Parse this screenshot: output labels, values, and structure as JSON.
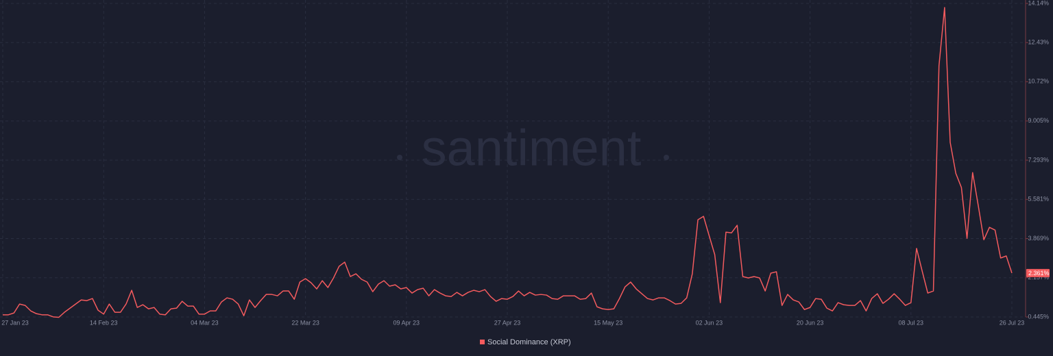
{
  "chart_data": {
    "type": "line",
    "watermark": "santiment",
    "x": [
      "27 Jan 23",
      "28 Jan 23",
      "29 Jan 23",
      "30 Jan 23",
      "31 Jan 23",
      "01 Feb 23",
      "02 Feb 23",
      "03 Feb 23",
      "04 Feb 23",
      "05 Feb 23",
      "06 Feb 23",
      "07 Feb 23",
      "08 Feb 23",
      "09 Feb 23",
      "10 Feb 23",
      "11 Feb 23",
      "12 Feb 23",
      "13 Feb 23",
      "14 Feb 23",
      "15 Feb 23",
      "16 Feb 23",
      "17 Feb 23",
      "18 Feb 23",
      "19 Feb 23",
      "20 Feb 23",
      "21 Feb 23",
      "22 Feb 23",
      "23 Feb 23",
      "24 Feb 23",
      "25 Feb 23",
      "26 Feb 23",
      "27 Feb 23",
      "28 Feb 23",
      "01 Mar 23",
      "02 Mar 23",
      "03 Mar 23",
      "04 Mar 23",
      "05 Mar 23",
      "06 Mar 23",
      "07 Mar 23",
      "08 Mar 23",
      "09 Mar 23",
      "10 Mar 23",
      "11 Mar 23",
      "12 Mar 23",
      "13 Mar 23",
      "14 Mar 23",
      "15 Mar 23",
      "16 Mar 23",
      "17 Mar 23",
      "18 Mar 23",
      "19 Mar 23",
      "20 Mar 23",
      "21 Mar 23",
      "22 Mar 23",
      "23 Mar 23",
      "24 Mar 23",
      "25 Mar 23",
      "26 Mar 23",
      "27 Mar 23",
      "28 Mar 23",
      "29 Mar 23",
      "30 Mar 23",
      "31 Mar 23",
      "01 Apr 23",
      "02 Apr 23",
      "03 Apr 23",
      "04 Apr 23",
      "05 Apr 23",
      "06 Apr 23",
      "07 Apr 23",
      "08 Apr 23",
      "09 Apr 23",
      "10 Apr 23",
      "11 Apr 23",
      "12 Apr 23",
      "13 Apr 23",
      "14 Apr 23",
      "15 Apr 23",
      "16 Apr 23",
      "17 Apr 23",
      "18 Apr 23",
      "19 Apr 23",
      "20 Apr 23",
      "21 Apr 23",
      "22 Apr 23",
      "23 Apr 23",
      "24 Apr 23",
      "25 Apr 23",
      "26 Apr 23",
      "27 Apr 23",
      "28 Apr 23",
      "29 Apr 23",
      "30 Apr 23",
      "01 May 23",
      "02 May 23",
      "03 May 23",
      "04 May 23",
      "05 May 23",
      "06 May 23",
      "07 May 23",
      "08 May 23",
      "09 May 23",
      "10 May 23",
      "11 May 23",
      "12 May 23",
      "13 May 23",
      "14 May 23",
      "15 May 23",
      "16 May 23",
      "17 May 23",
      "18 May 23",
      "19 May 23",
      "20 May 23",
      "21 May 23",
      "22 May 23",
      "23 May 23",
      "24 May 23",
      "25 May 23",
      "26 May 23",
      "27 May 23",
      "28 May 23",
      "29 May 23",
      "30 May 23",
      "31 May 23",
      "01 Jun 23",
      "02 Jun 23",
      "03 Jun 23",
      "04 Jun 23",
      "05 Jun 23",
      "06 Jun 23",
      "07 Jun 23",
      "08 Jun 23",
      "09 Jun 23",
      "10 Jun 23",
      "11 Jun 23",
      "12 Jun 23",
      "13 Jun 23",
      "14 Jun 23",
      "15 Jun 23",
      "16 Jun 23",
      "17 Jun 23",
      "18 Jun 23",
      "19 Jun 23",
      "20 Jun 23",
      "21 Jun 23",
      "22 Jun 23",
      "23 Jun 23",
      "24 Jun 23",
      "25 Jun 23",
      "26 Jun 23",
      "27 Jun 23",
      "28 Jun 23",
      "29 Jun 23",
      "30 Jun 23",
      "01 Jul 23",
      "02 Jul 23",
      "03 Jul 23",
      "04 Jul 23",
      "05 Jul 23",
      "06 Jul 23",
      "07 Jul 23",
      "08 Jul 23",
      "09 Jul 23",
      "10 Jul 23",
      "11 Jul 23",
      "12 Jul 23",
      "13 Jul 23",
      "14 Jul 23",
      "15 Jul 23",
      "16 Jul 23",
      "17 Jul 23",
      "18 Jul 23",
      "19 Jul 23",
      "20 Jul 23",
      "21 Jul 23",
      "22 Jul 23",
      "23 Jul 23",
      "24 Jul 23",
      "25 Jul 23",
      "26 Jul 23"
    ],
    "series": [
      {
        "name": "Social Dominance (XRP)",
        "color": "#f45b5e",
        "current_value_label": "2.361%",
        "values": [
          0.54,
          0.54,
          0.62,
          1.01,
          0.95,
          0.71,
          0.59,
          0.54,
          0.54,
          0.45,
          0.43,
          0.65,
          0.83,
          1.01,
          1.19,
          1.16,
          1.25,
          0.74,
          0.57,
          1.01,
          0.65,
          0.65,
          1.01,
          1.61,
          0.86,
          0.98,
          0.8,
          0.86,
          0.57,
          0.54,
          0.8,
          0.83,
          1.13,
          0.92,
          0.92,
          0.57,
          0.57,
          0.71,
          0.71,
          1.1,
          1.28,
          1.22,
          1.01,
          0.5,
          1.19,
          0.86,
          1.16,
          1.43,
          1.43,
          1.37,
          1.58,
          1.58,
          1.22,
          1.97,
          2.12,
          1.94,
          1.67,
          2.03,
          1.73,
          2.15,
          2.66,
          2.84,
          2.21,
          2.33,
          2.09,
          1.97,
          1.55,
          1.88,
          2.03,
          1.79,
          1.85,
          1.67,
          1.73,
          1.49,
          1.64,
          1.7,
          1.37,
          1.64,
          1.49,
          1.37,
          1.34,
          1.52,
          1.37,
          1.52,
          1.61,
          1.55,
          1.64,
          1.34,
          1.13,
          1.25,
          1.22,
          1.34,
          1.58,
          1.37,
          1.52,
          1.4,
          1.43,
          1.4,
          1.25,
          1.22,
          1.37,
          1.37,
          1.37,
          1.22,
          1.25,
          1.49,
          0.89,
          0.8,
          0.77,
          0.8,
          1.25,
          1.76,
          1.97,
          1.67,
          1.46,
          1.25,
          1.19,
          1.28,
          1.28,
          1.16,
          1.01,
          1.04,
          1.28,
          2.33,
          4.69,
          4.84,
          4.0,
          3.17,
          1.07,
          4.15,
          4.12,
          4.45,
          2.21,
          2.15,
          2.21,
          2.15,
          1.58,
          2.36,
          2.42,
          0.95,
          1.43,
          1.19,
          1.1,
          0.77,
          0.86,
          1.25,
          1.22,
          0.83,
          0.71,
          1.07,
          0.98,
          0.95,
          0.95,
          1.16,
          0.71,
          1.25,
          1.46,
          1.04,
          1.22,
          1.46,
          1.22,
          0.95,
          1.07,
          3.44,
          2.45,
          1.49,
          1.58,
          11.42,
          13.96,
          8.07,
          6.72,
          6.1,
          3.88,
          6.75,
          5.32,
          3.82,
          4.36,
          4.24,
          3.02,
          3.11,
          2.361
        ]
      }
    ],
    "xticks": [
      "27 Jan 23",
      "14 Feb 23",
      "04 Mar 23",
      "22 Mar 23",
      "09 Apr 23",
      "27 Apr 23",
      "15 May 23",
      "02 Jun 23",
      "20 Jun 23",
      "08 Jul 23",
      "26 Jul 23"
    ],
    "ylim": [
      0.445,
      14.14
    ],
    "yticks": [
      {
        "value": 0.445,
        "label": "0.445%"
      },
      {
        "value": 2.157,
        "label": "2.157%"
      },
      {
        "value": 3.869,
        "label": "3.869%"
      },
      {
        "value": 5.581,
        "label": "5.581%"
      },
      {
        "value": 7.293,
        "label": "7.293%"
      },
      {
        "value": 9.005,
        "label": "9.005%"
      },
      {
        "value": 10.72,
        "label": "10.72%"
      },
      {
        "value": 12.43,
        "label": "12.43%"
      },
      {
        "value": 14.14,
        "label": "14.14%"
      }
    ],
    "grid": true,
    "legend": "bottom"
  }
}
